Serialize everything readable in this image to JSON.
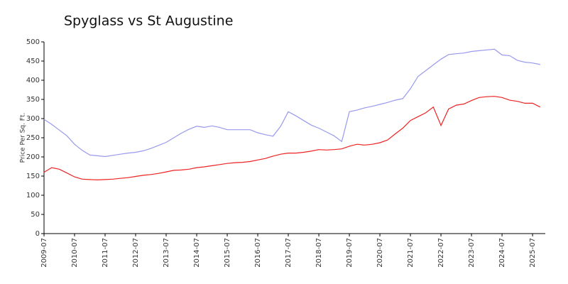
{
  "chart_data": {
    "type": "line",
    "title": "Spyglass vs St Augustine",
    "y_label": "Price Per Sq. Ft.",
    "x": [
      "2009-07",
      "2009-10",
      "2010-01",
      "2010-04",
      "2010-07",
      "2010-10",
      "2011-01",
      "2011-04",
      "2011-07",
      "2011-10",
      "2012-01",
      "2012-04",
      "2012-07",
      "2012-10",
      "2013-01",
      "2013-04",
      "2013-07",
      "2013-10",
      "2014-01",
      "2014-04",
      "2014-07",
      "2014-10",
      "2015-01",
      "2015-04",
      "2015-07",
      "2015-10",
      "2016-01",
      "2016-04",
      "2016-07",
      "2016-10",
      "2017-01",
      "2017-04",
      "2017-07",
      "2017-10",
      "2018-01",
      "2018-04",
      "2018-07",
      "2018-10",
      "2019-01",
      "2019-04",
      "2019-07",
      "2019-10",
      "2020-01",
      "2020-04",
      "2020-07",
      "2020-10",
      "2021-01",
      "2021-04",
      "2021-07",
      "2021-10",
      "2022-01",
      "2022-04",
      "2022-07",
      "2022-10",
      "2023-01",
      "2023-04",
      "2023-07",
      "2023-10",
      "2024-01",
      "2024-04",
      "2024-07",
      "2024-10",
      "2025-01",
      "2025-04",
      "2025-07",
      "2025-10"
    ],
    "series": [
      {
        "color": "#9999ee",
        "values": [
          298,
          285,
          270,
          255,
          233,
          217,
          205,
          203,
          201,
          204,
          207,
          210,
          212,
          216,
          222,
          230,
          238,
          250,
          262,
          272,
          280,
          277,
          281,
          277,
          271,
          271,
          271,
          271,
          263,
          258,
          254,
          280,
          318,
          307,
          295,
          283,
          275,
          265,
          255,
          240,
          318,
          322,
          328,
          332,
          337,
          342,
          348,
          352,
          378,
          410,
          425,
          440,
          455,
          467,
          469,
          471,
          475,
          477,
          479,
          481,
          466,
          464,
          452,
          447,
          445,
          441
        ]
      },
      {
        "color": "#ee2222",
        "values": [
          160,
          172,
          168,
          158,
          148,
          142,
          141,
          140,
          141,
          142,
          144,
          146,
          149,
          152,
          154,
          157,
          161,
          165,
          166,
          168,
          172,
          174,
          177,
          180,
          183,
          185,
          186,
          188,
          192,
          196,
          202,
          207,
          210,
          210,
          212,
          215,
          219,
          218,
          219,
          221,
          228,
          233,
          231,
          233,
          237,
          244,
          260,
          275,
          295,
          305,
          315,
          330,
          282,
          325,
          335,
          338,
          347,
          355,
          357,
          358,
          355,
          348,
          345,
          340,
          340,
          330
        ]
      }
    ],
    "xlim": [
      "2009-07",
      "2025-12"
    ],
    "xticks": [
      "2009-07",
      "2010-07",
      "2011-07",
      "2012-07",
      "2013-07",
      "2014-07",
      "2015-07",
      "2016-07",
      "2017-07",
      "2018-07",
      "2019-07",
      "2020-07",
      "2021-07",
      "2022-07",
      "2023-07",
      "2024-07",
      "2025-07"
    ],
    "ylim": [
      0,
      500
    ],
    "yticks": [
      0,
      50,
      100,
      150,
      200,
      250,
      300,
      350,
      400,
      450,
      500
    ],
    "grid": false
  }
}
